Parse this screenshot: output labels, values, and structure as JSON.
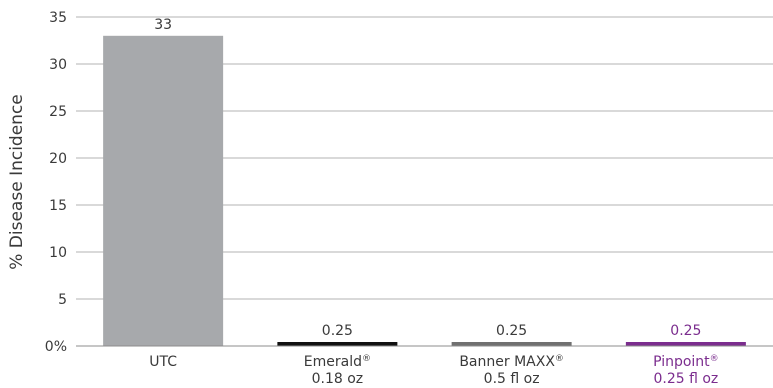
{
  "chart_data": {
    "type": "bar",
    "title": "",
    "xlabel": "",
    "ylabel": "% Disease Incidence",
    "ylim": [
      0,
      35
    ],
    "yticks": [
      "0%",
      "5",
      "10",
      "15",
      "20",
      "25",
      "30",
      "35"
    ],
    "grid": true,
    "bars": [
      {
        "name": "UTC",
        "mark": "",
        "line2": "",
        "value": 33,
        "label": "33",
        "color": "#a7a9ac",
        "label_color": "#3a3a3a"
      },
      {
        "name": "Emerald",
        "mark": "®",
        "line2": "0.18 oz",
        "value": 0.25,
        "label": "0.25",
        "color": "#111111",
        "label_color": "#3a3a3a"
      },
      {
        "name": "Banner MAXX",
        "mark": "®",
        "line2": "0.5 fl oz",
        "value": 0.25,
        "label": "0.25",
        "color": "#707070",
        "label_color": "#3a3a3a"
      },
      {
        "name": "Pinpoint",
        "mark": "®",
        "line2": "0.25 fl oz",
        "value": 0.25,
        "label": "0.25",
        "color": "#7b2d8e",
        "label_color": "#7b2d8e"
      }
    ]
  }
}
